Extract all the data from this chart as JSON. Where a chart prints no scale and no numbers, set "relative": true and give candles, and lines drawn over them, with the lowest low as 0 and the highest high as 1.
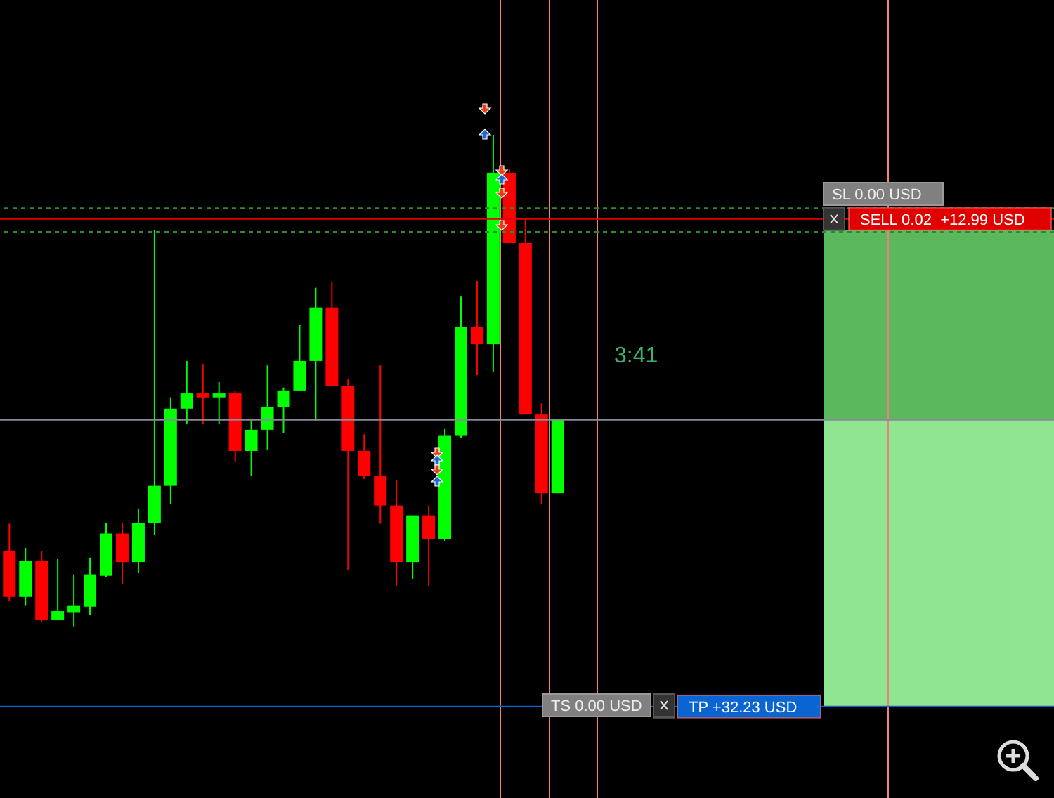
{
  "chart_data": {
    "type": "candlestick",
    "relative": true,
    "categories": [
      null,
      null,
      null,
      null,
      null,
      null,
      null,
      null,
      null,
      null,
      null,
      null,
      null,
      null,
      null,
      null,
      null,
      null,
      null,
      null,
      null,
      null,
      null,
      null,
      null,
      null,
      null,
      null,
      null,
      null,
      null,
      null,
      null,
      null,
      null
    ],
    "ohlc": [
      [
        0.154,
        0.209,
        0.051,
        0.06
      ],
      [
        0.06,
        0.16,
        0.043,
        0.134
      ],
      [
        0.134,
        0.154,
        0.009,
        0.014
      ],
      [
        0.014,
        0.137,
        0.014,
        0.031
      ],
      [
        0.029,
        0.106,
        0,
        0.043
      ],
      [
        0.04,
        0.14,
        0.023,
        0.106
      ],
      [
        0.103,
        0.211,
        0.1,
        0.189
      ],
      [
        0.189,
        0.211,
        0.086,
        0.131
      ],
      [
        0.131,
        0.24,
        0.109,
        0.211
      ],
      [
        0.211,
        0.806,
        0.186,
        0.286
      ],
      [
        0.286,
        0.466,
        0.249,
        0.443
      ],
      [
        0.443,
        0.54,
        0.411,
        0.474
      ],
      [
        0.474,
        0.534,
        0.411,
        0.466
      ],
      [
        0.466,
        0.497,
        0.411,
        0.474
      ],
      [
        0.474,
        0.48,
        0.334,
        0.357
      ],
      [
        0.357,
        0.423,
        0.306,
        0.4
      ],
      [
        0.4,
        0.531,
        0.36,
        0.446
      ],
      [
        0.446,
        0.486,
        0.394,
        0.48
      ],
      [
        0.48,
        0.614,
        0.48,
        0.54
      ],
      [
        0.54,
        0.689,
        0.417,
        0.649
      ],
      [
        0.649,
        0.7,
        0.489,
        0.489
      ],
      [
        0.489,
        0.503,
        0.114,
        0.357
      ],
      [
        0.357,
        0.391,
        0.3,
        0.306
      ],
      [
        0.306,
        0.531,
        0.209,
        0.246
      ],
      [
        0.246,
        0.297,
        0.083,
        0.131
      ],
      [
        0.131,
        0.226,
        0.097,
        0.226
      ],
      [
        0.226,
        0.246,
        0.083,
        0.177
      ],
      [
        0.177,
        0.403,
        0.174,
        0.389
      ],
      [
        0.389,
        0.671,
        0.383,
        0.609
      ],
      [
        0.609,
        0.703,
        0.511,
        0.574
      ],
      [
        0.574,
        1,
        0.517,
        0.923
      ],
      [
        0.923,
        0.931,
        0.78,
        0.78
      ],
      [
        0.78,
        0.831,
        0.431,
        0.431
      ],
      [
        0.431,
        0.454,
        0.249,
        0.271
      ],
      [
        0.271,
        0.42,
        0.271,
        0.42
      ]
    ],
    "colors": [
      "#ff0000",
      "#00ff00",
      "#ff0000",
      "#00ff00",
      "#00ff00",
      "#00ff00",
      "#00ff00",
      "#ff0000",
      "#00ff00",
      "#00ff00",
      "#00ff00",
      "#00ff00",
      "#ff0000",
      "#00ff00",
      "#ff0000",
      "#00ff00",
      "#00ff00",
      "#00ff00",
      "#00ff00",
      "#00ff00",
      "#ff0000",
      "#ff0000",
      "#ff0000",
      "#ff0000",
      "#ff0000",
      "#00ff00",
      "#ff0000",
      "#00ff00",
      "#00ff00",
      "#ff0000",
      "#00ff00",
      "#ff0000",
      "#ff0000",
      "#ff0000",
      "#00ff00"
    ],
    "ref_lines": [
      {
        "axis": "y",
        "value": 0.851,
        "label": null,
        "color": "#2e8b2e",
        "line_style": "dashed"
      },
      {
        "axis": "y",
        "value": 0.829,
        "label": "SELL 0.02  +12.99 USD",
        "color": "#e00000",
        "line_style": "solid"
      },
      {
        "axis": "y",
        "value": 0.803,
        "label": null,
        "color": "#2e8b2e",
        "line_style": "dashed"
      },
      {
        "axis": "y",
        "value": 0.42,
        "label": null,
        "color": "#8a8a9a",
        "line_style": "solid"
      },
      {
        "axis": "y",
        "value": -0.163,
        "label": "TP +32.23 USD",
        "color": "#0a64d2",
        "line_style": "solid"
      }
    ],
    "annotations": [
      "SL 0.00 USD",
      "TS 0.00 USD",
      "3:41"
    ]
  }
}
